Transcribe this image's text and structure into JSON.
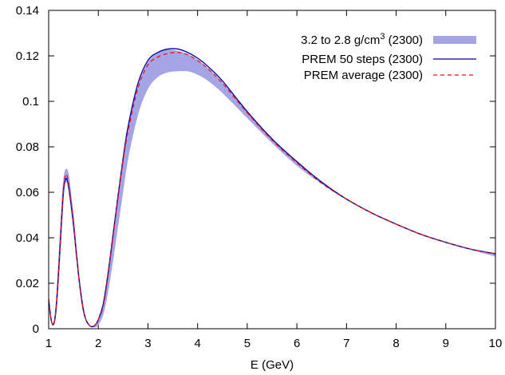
{
  "chart_data": {
    "type": "line",
    "title": "",
    "xlabel": "E (GeV)",
    "ylabel": "",
    "xlim": [
      1,
      10
    ],
    "ylim": [
      0,
      0.14
    ],
    "xticks": [
      1,
      2,
      3,
      4,
      5,
      6,
      7,
      8,
      9,
      10
    ],
    "yticks": [
      0,
      0.02,
      0.04,
      0.06,
      0.08,
      0.1,
      0.12,
      0.14
    ],
    "ytick_labels": [
      "0",
      "0.02",
      "0.04",
      "0.06",
      "0.08",
      "0.1",
      "0.12",
      "0.14"
    ],
    "grid": false,
    "legend_position": "top-right",
    "series": [
      {
        "name": "3.2 to 2.8 g/cm^3 (2300)",
        "legend_main": "3.2 to 2.8 g/cm",
        "legend_sup": "3",
        "legend_tail": " (2300)",
        "kind": "band",
        "color": "#a5a5e6",
        "x": [
          1.0,
          1.05,
          1.1,
          1.15,
          1.2,
          1.25,
          1.3,
          1.35,
          1.4,
          1.45,
          1.5,
          1.55,
          1.6,
          1.65,
          1.7,
          1.75,
          1.8,
          1.85,
          1.9,
          1.95,
          2.0,
          2.1,
          2.2,
          2.3,
          2.4,
          2.5,
          2.6,
          2.8,
          3.0,
          3.2,
          3.4,
          3.6,
          3.8,
          4.0,
          4.2,
          4.5,
          5.0,
          5.5,
          6.0,
          6.5,
          7.0,
          7.5,
          8.0,
          8.5,
          9.0,
          9.5,
          10.0
        ],
        "lower": [
          0.013,
          0.004,
          0.002,
          0.008,
          0.023,
          0.042,
          0.06,
          0.065,
          0.062,
          0.054,
          0.045,
          0.034,
          0.024,
          0.015,
          0.008,
          0.004,
          0.002,
          0.001,
          0.001,
          0.001,
          0.002,
          0.007,
          0.018,
          0.032,
          0.047,
          0.062,
          0.076,
          0.095,
          0.106,
          0.111,
          0.113,
          0.1135,
          0.1135,
          0.112,
          0.1095,
          0.104,
          0.093,
          0.082,
          0.072,
          0.064,
          0.057,
          0.051,
          0.046,
          0.0415,
          0.038,
          0.035,
          0.032
        ],
        "upper": [
          0.013,
          0.004,
          0.002,
          0.01,
          0.027,
          0.047,
          0.064,
          0.07,
          0.067,
          0.058,
          0.048,
          0.036,
          0.025,
          0.016,
          0.009,
          0.004,
          0.002,
          0.001,
          0.001,
          0.002,
          0.003,
          0.01,
          0.023,
          0.04,
          0.057,
          0.073,
          0.087,
          0.106,
          0.117,
          0.121,
          0.1225,
          0.122,
          0.1205,
          0.118,
          0.1145,
          0.108,
          0.095,
          0.083,
          0.073,
          0.064,
          0.057,
          0.051,
          0.046,
          0.0415,
          0.038,
          0.035,
          0.0325
        ]
      },
      {
        "name": "PREM 50 steps (2300)",
        "kind": "line",
        "color": "#0000a0",
        "dash": "",
        "x": [
          1.0,
          1.05,
          1.1,
          1.15,
          1.2,
          1.25,
          1.3,
          1.35,
          1.4,
          1.45,
          1.5,
          1.55,
          1.6,
          1.65,
          1.7,
          1.75,
          1.8,
          1.85,
          1.9,
          1.95,
          2.0,
          2.1,
          2.2,
          2.3,
          2.4,
          2.5,
          2.6,
          2.8,
          3.0,
          3.2,
          3.4,
          3.6,
          3.8,
          4.0,
          4.2,
          4.5,
          5.0,
          5.5,
          6.0,
          6.5,
          7.0,
          7.5,
          8.0,
          8.5,
          9.0,
          9.5,
          10.0
        ],
        "values": [
          0.013,
          0.004,
          0.002,
          0.009,
          0.025,
          0.044,
          0.061,
          0.066,
          0.063,
          0.055,
          0.046,
          0.035,
          0.024,
          0.015,
          0.008,
          0.004,
          0.002,
          0.001,
          0.001,
          0.002,
          0.004,
          0.011,
          0.025,
          0.042,
          0.059,
          0.075,
          0.089,
          0.108,
          0.118,
          0.1215,
          0.123,
          0.123,
          0.1215,
          0.119,
          0.1155,
          0.109,
          0.0955,
          0.0835,
          0.0735,
          0.0645,
          0.057,
          0.051,
          0.046,
          0.0415,
          0.038,
          0.035,
          0.033
        ]
      },
      {
        "name": "PREM average (2300)",
        "kind": "line",
        "color": "#ee1111",
        "dash": "5,4",
        "x": [
          1.0,
          1.05,
          1.1,
          1.15,
          1.2,
          1.25,
          1.3,
          1.35,
          1.4,
          1.45,
          1.5,
          1.55,
          1.6,
          1.65,
          1.7,
          1.75,
          1.8,
          1.85,
          1.9,
          1.95,
          2.0,
          2.1,
          2.2,
          2.3,
          2.4,
          2.5,
          2.6,
          2.8,
          3.0,
          3.2,
          3.4,
          3.6,
          3.8,
          4.0,
          4.2,
          4.5,
          5.0,
          5.5,
          6.0,
          6.5,
          7.0,
          7.5,
          8.0,
          8.5,
          9.0,
          9.5,
          10.0
        ],
        "values": [
          0.013,
          0.004,
          0.002,
          0.009,
          0.026,
          0.045,
          0.062,
          0.068,
          0.064,
          0.056,
          0.047,
          0.035,
          0.024,
          0.015,
          0.008,
          0.004,
          0.002,
          0.001,
          0.001,
          0.002,
          0.004,
          0.01,
          0.024,
          0.041,
          0.058,
          0.074,
          0.087,
          0.106,
          0.116,
          0.1195,
          0.121,
          0.1215,
          0.1205,
          0.118,
          0.1145,
          0.108,
          0.095,
          0.083,
          0.073,
          0.064,
          0.057,
          0.051,
          0.046,
          0.0415,
          0.038,
          0.035,
          0.033
        ]
      }
    ]
  }
}
